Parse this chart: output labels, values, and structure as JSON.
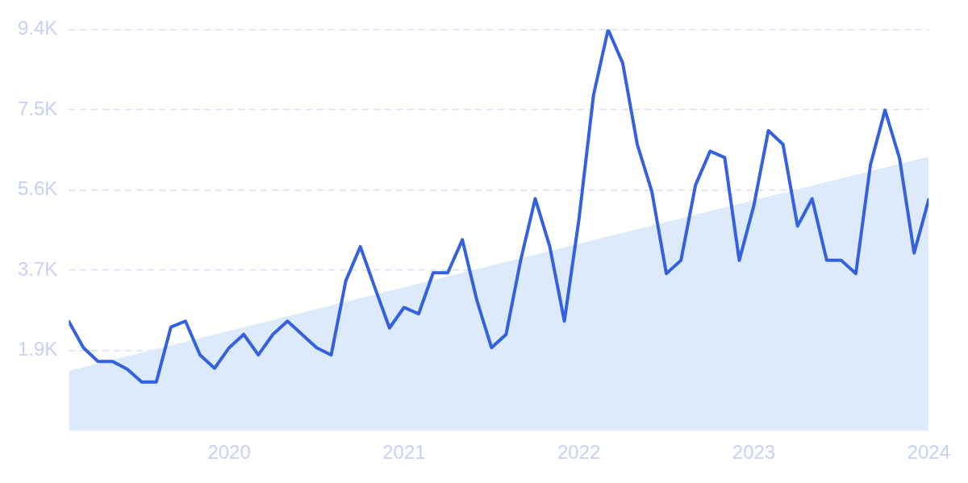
{
  "chart_data": {
    "type": "line",
    "x": [
      "2019-02",
      "2019-03",
      "2019-04",
      "2019-05",
      "2019-06",
      "2019-07",
      "2019-08",
      "2019-09",
      "2019-10",
      "2019-11",
      "2019-12",
      "2020-01",
      "2020-02",
      "2020-03",
      "2020-04",
      "2020-05",
      "2020-06",
      "2020-07",
      "2020-08",
      "2020-09",
      "2020-10",
      "2020-11",
      "2020-12",
      "2021-01",
      "2021-02",
      "2021-03",
      "2021-04",
      "2021-05",
      "2021-06",
      "2021-07",
      "2021-08",
      "2021-09",
      "2021-10",
      "2021-11",
      "2021-12",
      "2022-01",
      "2022-02",
      "2022-03",
      "2022-04",
      "2022-05",
      "2022-06",
      "2022-07",
      "2022-08",
      "2022-09",
      "2022-10",
      "2022-11",
      "2022-12",
      "2023-01",
      "2023-02",
      "2023-03",
      "2023-04",
      "2023-05",
      "2023-06",
      "2023-07",
      "2023-08",
      "2023-09",
      "2023-10",
      "2023-11",
      "2023-12",
      "2024-01"
    ],
    "series": [
      {
        "type": "area",
        "color": "#dceafb",
        "x": [
          "2019-02",
          "2024-01"
        ],
        "values": [
          1400,
          6400
        ]
      },
      {
        "type": "line",
        "color": "#3461e0",
        "values": [
          2550,
          1940,
          1620,
          1620,
          1440,
          1140,
          1140,
          2420,
          2560,
          1770,
          1460,
          1940,
          2250,
          1770,
          2250,
          2560,
          2250,
          1940,
          1770,
          3500,
          4300,
          3340,
          2400,
          2880,
          2730,
          3690,
          3690,
          4460,
          3040,
          1940,
          2250,
          3980,
          5420,
          4300,
          2560,
          4940,
          7840,
          9370,
          8590,
          6690,
          5590,
          3670,
          3980,
          5740,
          6530,
          6380,
          3980,
          5260,
          7010,
          6690,
          4780,
          5420,
          3980,
          3980,
          3670,
          6210,
          7490,
          6360,
          4150,
          5400
        ]
      }
    ],
    "xlim": [
      "2019-02",
      "2024-01"
    ],
    "xticks": [
      "2020",
      "2021",
      "2022",
      "2023",
      "2024"
    ],
    "ylim": [
      0,
      9375
    ],
    "yticks": [
      {
        "value": 1875,
        "label": "1.9K"
      },
      {
        "value": 3750,
        "label": "3.7K"
      },
      {
        "value": 5625,
        "label": "5.6K"
      },
      {
        "value": 7500,
        "label": "7.5K"
      },
      {
        "value": 9375,
        "label": "9.4K"
      }
    ],
    "grid": "y",
    "legend": false,
    "line_style": "solid",
    "marker": "none"
  }
}
